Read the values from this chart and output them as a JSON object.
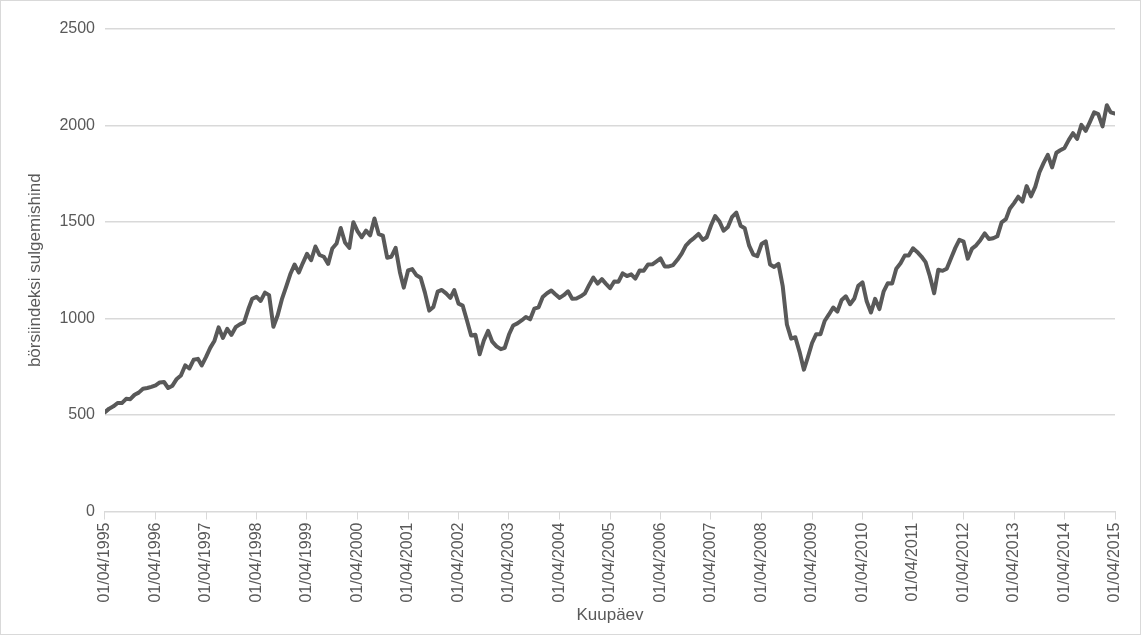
{
  "chart_data": {
    "type": "line",
    "xlabel": "Kuupäev",
    "ylabel": "börsiindeksi sulgemishind",
    "xlim": [
      "1995-04-01",
      "2015-04-01"
    ],
    "xticks": [
      {
        "value": "1995-04-01",
        "label": "01/04/1995"
      },
      {
        "value": "1996-04-01",
        "label": "01/04/1996"
      },
      {
        "value": "1997-04-01",
        "label": "01/04/1997"
      },
      {
        "value": "1998-04-01",
        "label": "01/04/1998"
      },
      {
        "value": "1999-04-01",
        "label": "01/04/1999"
      },
      {
        "value": "2000-04-01",
        "label": "01/04/2000"
      },
      {
        "value": "2001-04-01",
        "label": "01/04/2001"
      },
      {
        "value": "2002-04-01",
        "label": "01/04/2002"
      },
      {
        "value": "2003-04-01",
        "label": "01/04/2003"
      },
      {
        "value": "2004-04-01",
        "label": "01/04/2004"
      },
      {
        "value": "2005-04-01",
        "label": "01/04/2005"
      },
      {
        "value": "2006-04-01",
        "label": "01/04/2006"
      },
      {
        "value": "2007-04-01",
        "label": "01/04/2007"
      },
      {
        "value": "2008-04-01",
        "label": "01/04/2008"
      },
      {
        "value": "2009-04-01",
        "label": "01/04/2009"
      },
      {
        "value": "2010-04-01",
        "label": "01/04/2010"
      },
      {
        "value": "2011-04-01",
        "label": "01/04/2011"
      },
      {
        "value": "2012-04-01",
        "label": "01/04/2012"
      },
      {
        "value": "2013-04-01",
        "label": "01/04/2013"
      },
      {
        "value": "2014-04-01",
        "label": "01/04/2014"
      },
      {
        "value": "2015-04-01",
        "label": "01/04/2015"
      }
    ],
    "ylim": [
      0,
      2500
    ],
    "yticks": [
      0,
      500,
      1000,
      1500,
      2000,
      2500
    ],
    "grid": "y",
    "legend": false,
    "marker": "none",
    "line_style": "solid",
    "x": [
      "1995-04",
      "1995-05",
      "1995-06",
      "1995-07",
      "1995-08",
      "1995-09",
      "1995-10",
      "1995-11",
      "1995-12",
      "1996-01",
      "1996-02",
      "1996-03",
      "1996-04",
      "1996-05",
      "1996-06",
      "1996-07",
      "1996-08",
      "1996-09",
      "1996-10",
      "1996-11",
      "1996-12",
      "1997-01",
      "1997-02",
      "1997-03",
      "1997-04",
      "1997-05",
      "1997-06",
      "1997-07",
      "1997-08",
      "1997-09",
      "1997-10",
      "1997-11",
      "1997-12",
      "1998-01",
      "1998-02",
      "1998-03",
      "1998-04",
      "1998-05",
      "1998-06",
      "1998-07",
      "1998-08",
      "1998-09",
      "1998-10",
      "1998-11",
      "1998-12",
      "1999-01",
      "1999-02",
      "1999-03",
      "1999-04",
      "1999-05",
      "1999-06",
      "1999-07",
      "1999-08",
      "1999-09",
      "1999-10",
      "1999-11",
      "1999-12",
      "2000-01",
      "2000-02",
      "2000-03",
      "2000-04",
      "2000-05",
      "2000-06",
      "2000-07",
      "2000-08",
      "2000-09",
      "2000-10",
      "2000-11",
      "2000-12",
      "2001-01",
      "2001-02",
      "2001-03",
      "2001-04",
      "2001-05",
      "2001-06",
      "2001-07",
      "2001-08",
      "2001-09",
      "2001-10",
      "2001-11",
      "2001-12",
      "2002-01",
      "2002-02",
      "2002-03",
      "2002-04",
      "2002-05",
      "2002-06",
      "2002-07",
      "2002-08",
      "2002-09",
      "2002-10",
      "2002-11",
      "2002-12",
      "2003-01",
      "2003-02",
      "2003-03",
      "2003-04",
      "2003-05",
      "2003-06",
      "2003-07",
      "2003-08",
      "2003-09",
      "2003-10",
      "2003-11",
      "2003-12",
      "2004-01",
      "2004-02",
      "2004-03",
      "2004-04",
      "2004-05",
      "2004-06",
      "2004-07",
      "2004-08",
      "2004-09",
      "2004-10",
      "2004-11",
      "2004-12",
      "2005-01",
      "2005-02",
      "2005-03",
      "2005-04",
      "2005-05",
      "2005-06",
      "2005-07",
      "2005-08",
      "2005-09",
      "2005-10",
      "2005-11",
      "2005-12",
      "2006-01",
      "2006-02",
      "2006-03",
      "2006-04",
      "2006-05",
      "2006-06",
      "2006-07",
      "2006-08",
      "2006-09",
      "2006-10",
      "2006-11",
      "2006-12",
      "2007-01",
      "2007-02",
      "2007-03",
      "2007-04",
      "2007-05",
      "2007-06",
      "2007-07",
      "2007-08",
      "2007-09",
      "2007-10",
      "2007-11",
      "2007-12",
      "2008-01",
      "2008-02",
      "2008-03",
      "2008-04",
      "2008-05",
      "2008-06",
      "2008-07",
      "2008-08",
      "2008-09",
      "2008-10",
      "2008-11",
      "2008-12",
      "2009-01",
      "2009-02",
      "2009-03",
      "2009-04",
      "2009-05",
      "2009-06",
      "2009-07",
      "2009-08",
      "2009-09",
      "2009-10",
      "2009-11",
      "2009-12",
      "2010-01",
      "2010-02",
      "2010-03",
      "2010-04",
      "2010-05",
      "2010-06",
      "2010-07",
      "2010-08",
      "2010-09",
      "2010-10",
      "2010-11",
      "2010-12",
      "2011-01",
      "2011-02",
      "2011-03",
      "2011-04",
      "2011-05",
      "2011-06",
      "2011-07",
      "2011-08",
      "2011-09",
      "2011-10",
      "2011-11",
      "2011-12",
      "2012-01",
      "2012-02",
      "2012-03",
      "2012-04",
      "2012-05",
      "2012-06",
      "2012-07",
      "2012-08",
      "2012-09",
      "2012-10",
      "2012-11",
      "2012-12",
      "2013-01",
      "2013-02",
      "2013-03",
      "2013-04",
      "2013-05",
      "2013-06",
      "2013-07",
      "2013-08",
      "2013-09",
      "2013-10",
      "2013-11",
      "2013-12",
      "2014-01",
      "2014-02",
      "2014-03",
      "2014-04",
      "2014-05",
      "2014-06",
      "2014-07",
      "2014-08",
      "2014-09",
      "2014-10",
      "2014-11",
      "2014-12",
      "2015-01",
      "2015-02",
      "2015-03",
      "2015-04"
    ],
    "series": [
      {
        "color": "#595959",
        "values": [
          515,
          533,
          545,
          562,
          562,
          584,
          582,
          605,
          616,
          636,
          640,
          646,
          654,
          669,
          671,
          640,
          652,
          687,
          705,
          757,
          741,
          786,
          791,
          757,
          801,
          848,
          885,
          954,
          899,
          947,
          915,
          955,
          970,
          980,
          1049,
          1102,
          1112,
          1091,
          1134,
          1121,
          957,
          1017,
          1099,
          1164,
          1229,
          1280,
          1238,
          1286,
          1335,
          1302,
          1373,
          1329,
          1320,
          1283,
          1363,
          1389,
          1469,
          1394,
          1366,
          1499,
          1452,
          1421,
          1455,
          1431,
          1518,
          1437,
          1429,
          1315,
          1320,
          1366,
          1240,
          1160,
          1249,
          1256,
          1224,
          1211,
          1134,
          1041,
          1060,
          1139,
          1148,
          1130,
          1107,
          1147,
          1077,
          1067,
          990,
          912,
          916,
          815,
          886,
          936,
          880,
          856,
          841,
          848,
          917,
          964,
          975,
          990,
          1008,
          996,
          1051,
          1058,
          1112,
          1131,
          1145,
          1126,
          1107,
          1121,
          1141,
          1102,
          1104,
          1115,
          1130,
          1174,
          1212,
          1181,
          1204,
          1181,
          1157,
          1192,
          1191,
          1234,
          1220,
          1229,
          1207,
          1249,
          1248,
          1280,
          1281,
          1295,
          1311,
          1270,
          1270,
          1277,
          1304,
          1336,
          1378,
          1401,
          1418,
          1438,
          1407,
          1421,
          1482,
          1531,
          1503,
          1455,
          1474,
          1527,
          1549,
          1481,
          1468,
          1379,
          1331,
          1323,
          1386,
          1400,
          1280,
          1267,
          1283,
          1166,
          969,
          896,
          903,
          826,
          735,
          798,
          873,
          919,
          919,
          987,
          1021,
          1057,
          1036,
          1096,
          1115,
          1074,
          1104,
          1169,
          1187,
          1089,
          1031,
          1102,
          1049,
          1141,
          1183,
          1181,
          1258,
          1286,
          1327,
          1326,
          1364,
          1345,
          1321,
          1292,
          1219,
          1131,
          1253,
          1247,
          1258,
          1312,
          1366,
          1408,
          1398,
          1310,
          1362,
          1379,
          1407,
          1441,
          1412,
          1416,
          1426,
          1498,
          1515,
          1569,
          1598,
          1631,
          1606,
          1686,
          1633,
          1682,
          1757,
          1806,
          1848,
          1783,
          1859,
          1872,
          1884,
          1924,
          1960,
          1931,
          2003,
          1972,
          2018,
          2068,
          2059,
          1995,
          2105,
          2068,
          2062
        ]
      }
    ]
  }
}
